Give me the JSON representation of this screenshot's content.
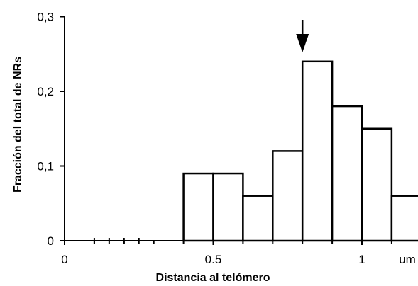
{
  "chart_data": {
    "type": "bar",
    "subtype": "histogram",
    "xlabel": "Distancia al telómero",
    "ylabel": "Fracción del total de NRs",
    "x_tick_labels": [
      "0",
      "0.5",
      "1",
      "um"
    ],
    "x_ticks": [
      0,
      0.5,
      1
    ],
    "y_tick_labels": [
      "0",
      "0,1",
      "0,2",
      "0,3"
    ],
    "y_ticks": [
      0,
      0.1,
      0.2,
      0.3
    ],
    "xlim": [
      0,
      1.2
    ],
    "ylim": [
      0,
      0.3
    ],
    "bin_width": 0.1,
    "bins": [
      {
        "x0": 0.4,
        "x1": 0.5,
        "value": 0.09
      },
      {
        "x0": 0.5,
        "x1": 0.6,
        "value": 0.09
      },
      {
        "x0": 0.6,
        "x1": 0.7,
        "value": 0.06
      },
      {
        "x0": 0.7,
        "x1": 0.8,
        "value": 0.12
      },
      {
        "x0": 0.8,
        "x1": 0.9,
        "value": 0.24
      },
      {
        "x0": 0.9,
        "x1": 1.0,
        "value": 0.18
      },
      {
        "x0": 1.0,
        "x1": 1.1,
        "value": 0.15
      },
      {
        "x0": 1.1,
        "x1": 1.2,
        "value": 0.06
      }
    ],
    "dashed_baseline_range": [
      0.1,
      0.3
    ],
    "arrow_marker_x": 0.8,
    "grid": false
  }
}
